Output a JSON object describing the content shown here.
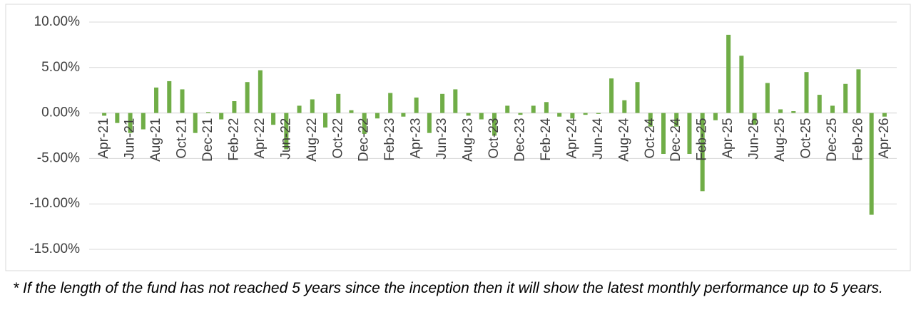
{
  "chart_data": {
    "type": "bar",
    "categories": [
      "Apr-21",
      null,
      "Jun-21",
      null,
      "Aug-21",
      null,
      "Oct-21",
      null,
      "Dec-21",
      null,
      "Feb-22",
      null,
      "Apr-22",
      null,
      "Jun-22",
      null,
      "Aug-22",
      null,
      "Oct-22",
      null,
      "Dec-22",
      null,
      "Feb-23",
      null,
      "Apr-23",
      null,
      "Jun-23",
      null,
      "Aug-23",
      null,
      "Oct-23",
      null,
      "Dec-23",
      null,
      "Feb-24",
      null,
      "Apr-24",
      null,
      "Jun-24",
      null,
      "Aug-24",
      null,
      "Oct-24",
      null,
      "Dec-24",
      null,
      "Feb-25",
      null,
      "Apr-25",
      null,
      "Jun-25",
      null,
      "Aug-25",
      null,
      "Oct-25",
      null,
      "Dec-25",
      null,
      "Feb-26",
      null,
      "Apr-26"
    ],
    "values": [
      -0.3,
      -1.1,
      -2.2,
      -1.8,
      2.8,
      3.5,
      2.6,
      -2.2,
      0.1,
      -0.7,
      1.3,
      3.4,
      4.7,
      -1.3,
      -4.0,
      0.8,
      1.5,
      -1.6,
      2.1,
      0.3,
      -2.3,
      -0.6,
      2.2,
      -0.4,
      1.7,
      -2.2,
      2.1,
      2.6,
      -0.3,
      -0.7,
      -2.5,
      0.8,
      -0.2,
      0.8,
      1.2,
      -0.4,
      -0.6,
      -0.2,
      -0.1,
      3.8,
      1.4,
      3.4,
      -1.5,
      -4.5,
      -1.5,
      -4.5,
      -8.6,
      -0.8,
      8.6,
      6.3,
      -1.3,
      3.3,
      0.4,
      0.2,
      4.5,
      2.0,
      0.8,
      3.2,
      4.8,
      -11.2,
      -0.4
    ],
    "color": "#70ad47",
    "ylim": [
      -15,
      10
    ],
    "yticks": [
      {
        "value": -15,
        "label": "-15.00%"
      },
      {
        "value": -10,
        "label": "-10.00%"
      },
      {
        "value": -5,
        "label": "-5.00%"
      },
      {
        "value": 0,
        "label": "0.00%"
      },
      {
        "value": 5,
        "label": "5.00%"
      },
      {
        "value": 10,
        "label": "10.00%"
      }
    ],
    "grid": true,
    "note": "* If the length of the fund has not reached 5 years since the inception then it will show the latest monthly performance up to 5 years."
  }
}
